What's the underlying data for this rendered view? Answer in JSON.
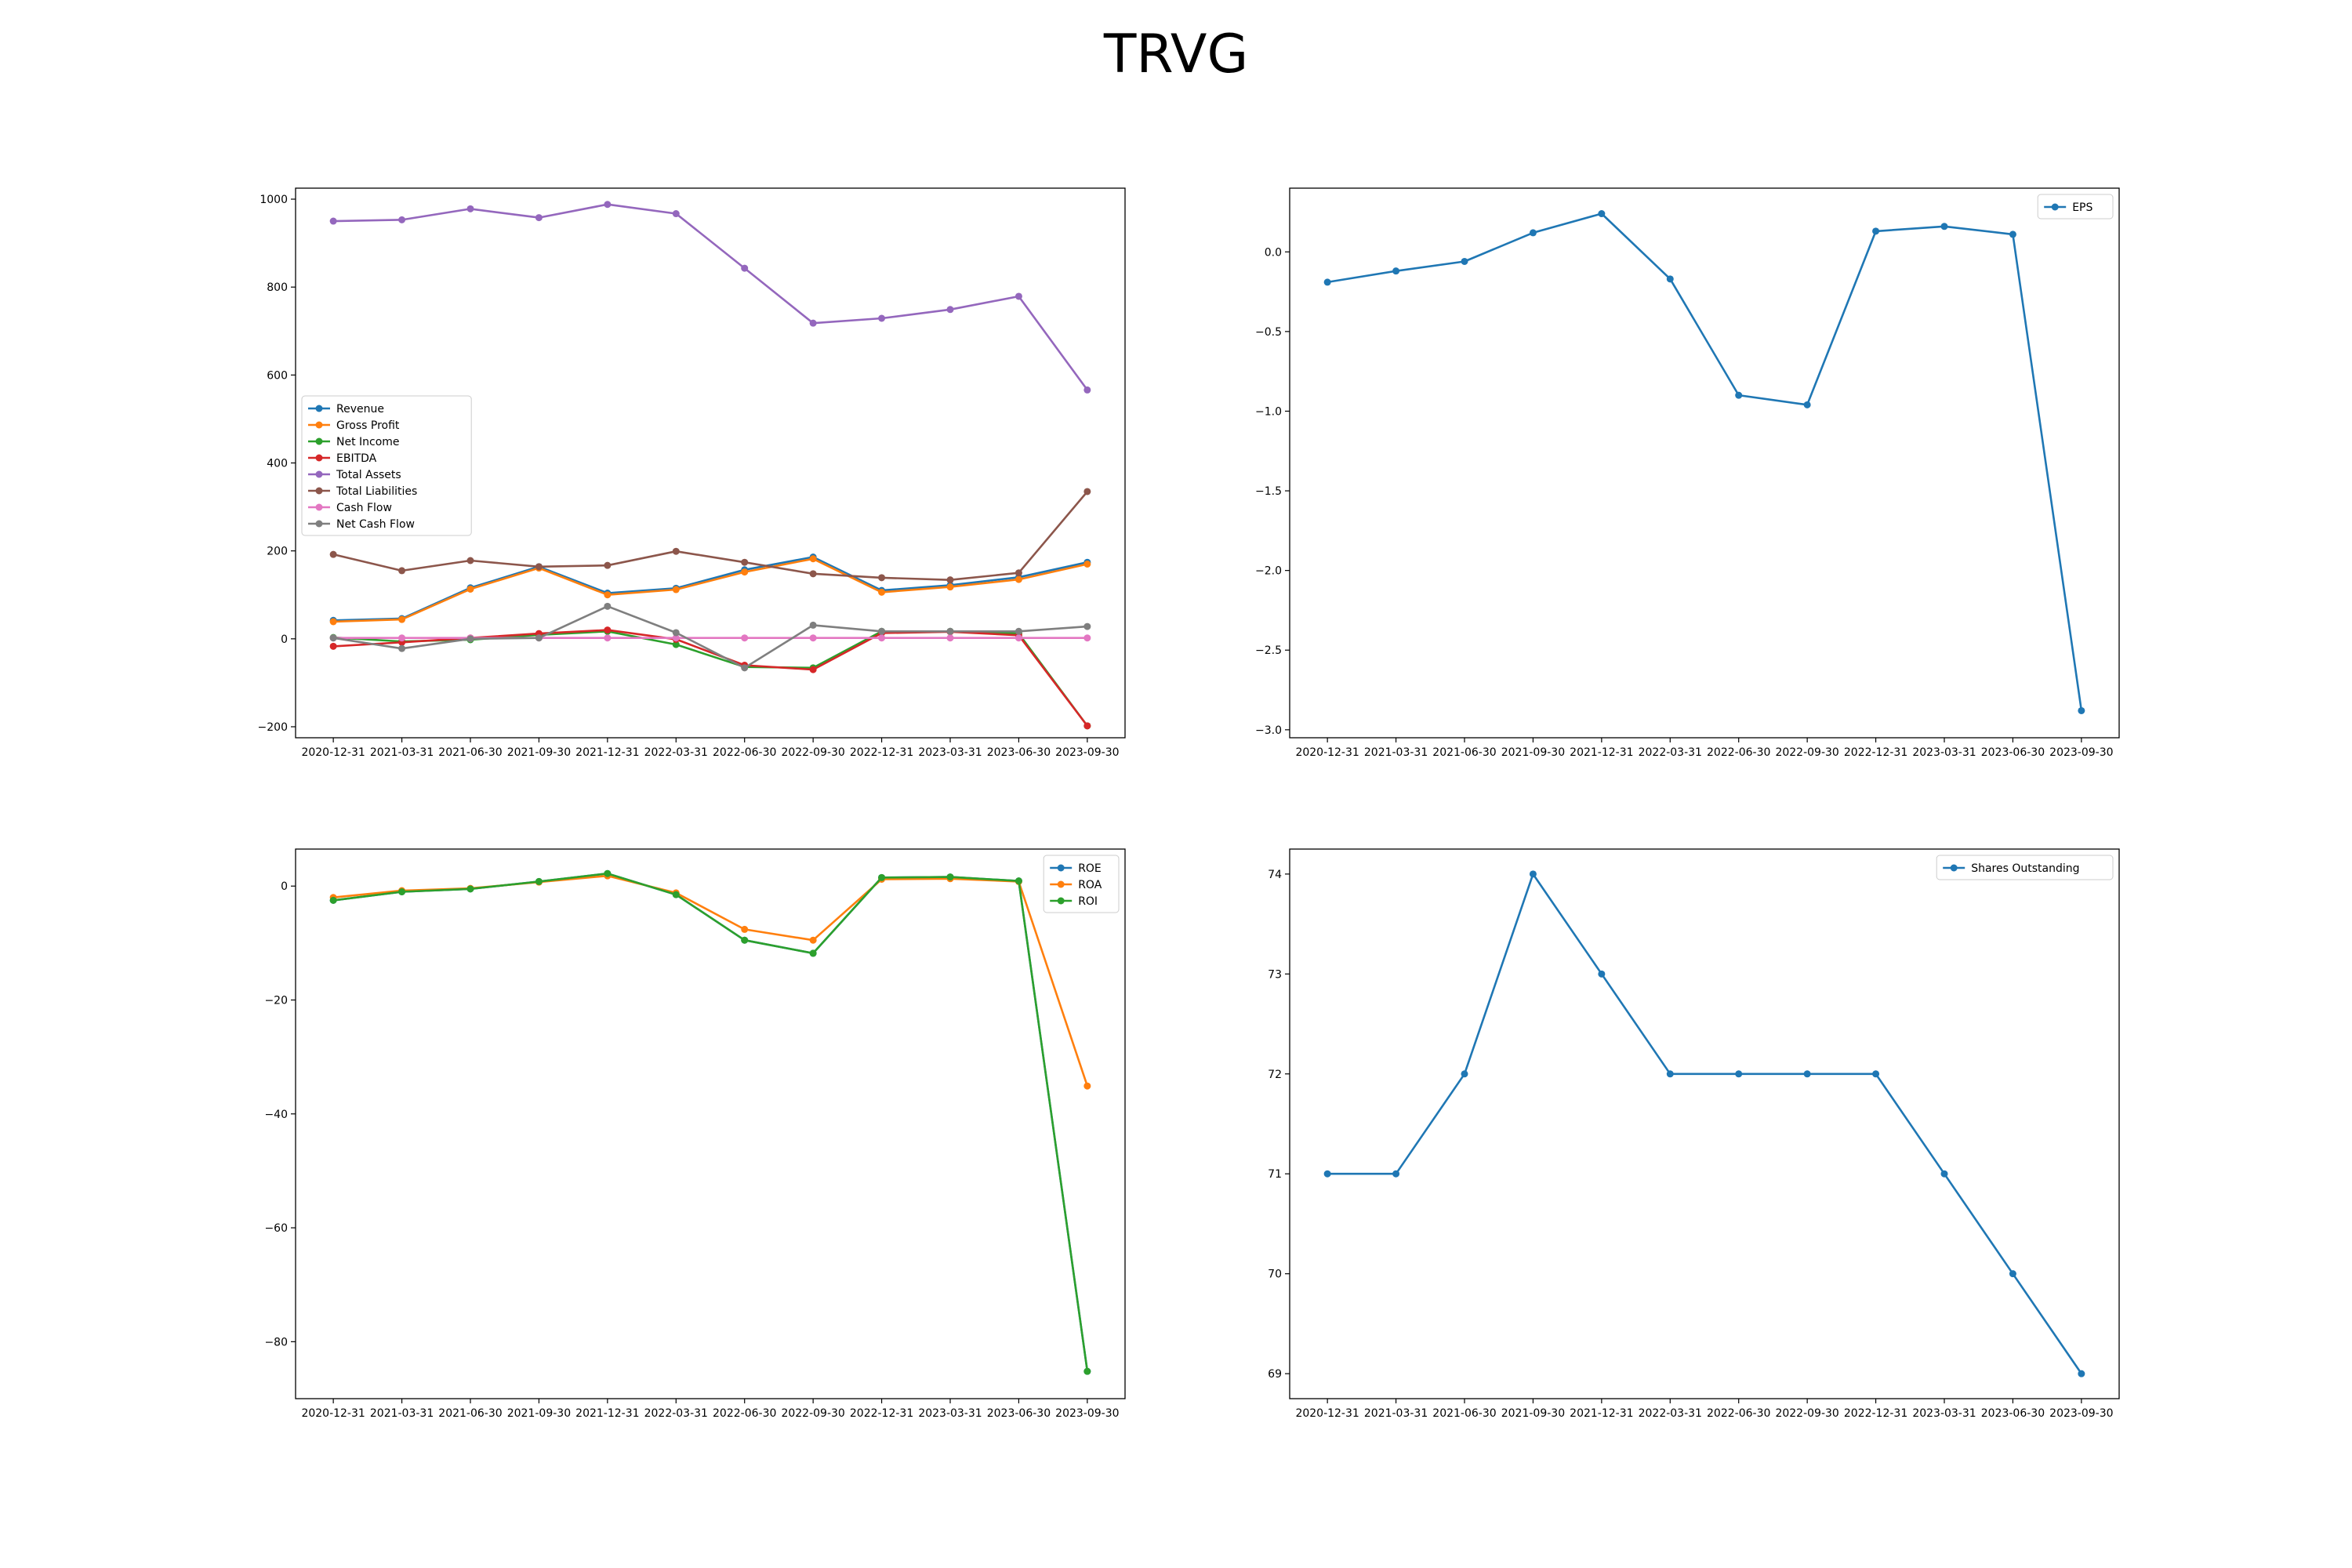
{
  "figure": {
    "title": "TRVG"
  },
  "chart_data": [
    {
      "type": "line",
      "x": [
        "2020-12-31",
        "2021-03-31",
        "2021-06-30",
        "2021-09-30",
        "2021-12-31",
        "2022-03-31",
        "2022-06-30",
        "2022-09-30",
        "2022-12-31",
        "2023-03-31",
        "2023-06-30",
        "2023-09-30"
      ],
      "ylim": [
        -225,
        1025
      ],
      "yticks": [
        -200,
        0,
        200,
        400,
        600,
        800,
        1000
      ],
      "legend_position": "center-left",
      "grid": false,
      "series": [
        {
          "name": "Revenue",
          "color": "#1f77b4",
          "values": [
            42,
            46,
            116,
            164,
            104,
            115,
            157,
            186,
            110,
            122,
            140,
            174
          ]
        },
        {
          "name": "Gross Profit",
          "color": "#ff7f0e",
          "values": [
            39,
            44,
            113,
            161,
            100,
            112,
            152,
            182,
            106,
            118,
            135,
            170
          ]
        },
        {
          "name": "Net Income",
          "color": "#2ca02c",
          "values": [
            3,
            -6,
            -2,
            9,
            17,
            -13,
            -64,
            -66,
            17,
            17,
            12,
            -198
          ]
        },
        {
          "name": "EBITDA",
          "color": "#d62728",
          "values": [
            -17,
            -8,
            2,
            12,
            20,
            -1,
            -60,
            -70,
            13,
            16,
            8,
            -198
          ]
        },
        {
          "name": "Total Assets",
          "color": "#9467bd",
          "values": [
            950,
            953,
            978,
            958,
            988,
            967,
            843,
            718,
            729,
            749,
            779,
            566
          ]
        },
        {
          "name": "Total Liabilities",
          "color": "#8c564b",
          "values": [
            192,
            155,
            178,
            164,
            167,
            199,
            174,
            148,
            139,
            134,
            150,
            335
          ]
        },
        {
          "name": "Cash Flow",
          "color": "#e377c2",
          "values": [
            2,
            2,
            2,
            2,
            2,
            2,
            2,
            2,
            2,
            2,
            2,
            2
          ]
        },
        {
          "name": "Net Cash Flow",
          "color": "#7f7f7f",
          "values": [
            2,
            -22,
            0,
            2,
            74,
            14,
            -66,
            31,
            17,
            17,
            17,
            28
          ]
        }
      ]
    },
    {
      "type": "line",
      "x": [
        "2020-12-31",
        "2021-03-31",
        "2021-06-30",
        "2021-09-30",
        "2021-12-31",
        "2022-03-31",
        "2022-06-30",
        "2022-09-30",
        "2022-12-31",
        "2023-03-31",
        "2023-06-30",
        "2023-09-30"
      ],
      "ylim": [
        -3.05,
        0.4
      ],
      "yticks": [
        -3.0,
        -2.5,
        -2.0,
        -1.5,
        -1.0,
        -0.5,
        0.0
      ],
      "legend_position": "upper right",
      "grid": false,
      "series": [
        {
          "name": "EPS",
          "color": "#1f77b4",
          "values": [
            -0.19,
            -0.12,
            -0.06,
            0.12,
            0.24,
            -0.17,
            -0.9,
            -0.96,
            0.13,
            0.16,
            0.11,
            -2.88
          ]
        }
      ]
    },
    {
      "type": "line",
      "x": [
        "2020-12-31",
        "2021-03-31",
        "2021-06-30",
        "2021-09-30",
        "2021-12-31",
        "2022-03-31",
        "2022-06-30",
        "2022-09-30",
        "2022-12-31",
        "2023-03-31",
        "2023-06-30",
        "2023-09-30"
      ],
      "ylim": [
        -90,
        6.5
      ],
      "yticks": [
        -80,
        -60,
        -40,
        -20,
        0
      ],
      "legend_position": "upper right",
      "grid": false,
      "series": [
        {
          "name": "ROE",
          "color": "#1f77b4",
          "values": [
            -2.5,
            -1.0,
            -0.5,
            0.8,
            2.2,
            -1.5,
            -9.5,
            -11.8,
            1.5,
            1.6,
            0.9,
            -85.2
          ]
        },
        {
          "name": "ROA",
          "color": "#ff7f0e",
          "values": [
            -2.0,
            -0.8,
            -0.4,
            0.7,
            1.8,
            -1.2,
            -7.6,
            -9.5,
            1.2,
            1.3,
            0.8,
            -35.1
          ]
        },
        {
          "name": "ROI",
          "color": "#2ca02c",
          "values": [
            -2.5,
            -1.0,
            -0.5,
            0.8,
            2.2,
            -1.5,
            -9.5,
            -11.8,
            1.5,
            1.6,
            0.9,
            -85.2
          ]
        }
      ]
    },
    {
      "type": "line",
      "x": [
        "2020-12-31",
        "2021-03-31",
        "2021-06-30",
        "2021-09-30",
        "2021-12-31",
        "2022-03-31",
        "2022-06-30",
        "2022-09-30",
        "2022-12-31",
        "2023-03-31",
        "2023-06-30",
        "2023-09-30"
      ],
      "ylim": [
        68.75,
        74.25
      ],
      "yticks": [
        69,
        70,
        71,
        72,
        73,
        74
      ],
      "legend_position": "upper right",
      "grid": false,
      "series": [
        {
          "name": "Shares Outstanding",
          "color": "#1f77b4",
          "values": [
            71,
            71,
            72,
            74,
            73,
            72,
            72,
            72,
            72,
            71,
            70,
            69
          ]
        }
      ]
    }
  ]
}
